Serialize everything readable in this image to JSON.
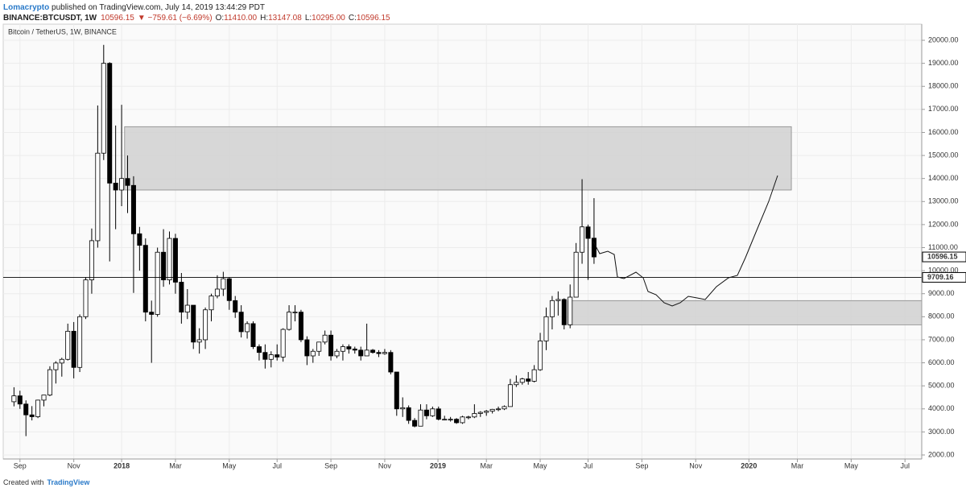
{
  "header": {
    "author": "Lomacrypto",
    "published": " published on TradingView.com, July 14, 2019 13:44:29 PDT",
    "symbol": "BINANCE:BTCUSDT, 1W",
    "price": "10596.15",
    "change": "▼ −759.61 (−6.69%)",
    "ohlc": [
      {
        "label": "O:",
        "value": "11410.00"
      },
      {
        "label": "H:",
        "value": "13147.08"
      },
      {
        "label": "L:",
        "value": "10295.00"
      },
      {
        "label": "C:",
        "value": "10596.15"
      }
    ]
  },
  "footer": {
    "text": "Created with",
    "brand": "TradingView"
  },
  "chart_data": {
    "type": "candlestick",
    "title": "Bitcoin / TetherUS, 1W, BINANCE",
    "categories": [
      null,
      null,
      null,
      null,
      null,
      null,
      null,
      null,
      null,
      null,
      null,
      null,
      null,
      null,
      null,
      null,
      null,
      null,
      null,
      null,
      null,
      null,
      null,
      null,
      null,
      null,
      null,
      null,
      null,
      null,
      null,
      null,
      null,
      null,
      null,
      null,
      null,
      null,
      null,
      null,
      null,
      null,
      null,
      null,
      null,
      null,
      null,
      null,
      null,
      null,
      null,
      null,
      null,
      null,
      null,
      null,
      null,
      null,
      null,
      null,
      null,
      null,
      null,
      null,
      null,
      null,
      null,
      null,
      null,
      null,
      null,
      null,
      null,
      null,
      null,
      null,
      null,
      null,
      null,
      null,
      null,
      null,
      null,
      null,
      null,
      null,
      null,
      null,
      null,
      null,
      null,
      null,
      null,
      null,
      null,
      null,
      null,
      null
    ],
    "open": [
      4310,
      4565,
      4210,
      3740,
      3660,
      4380,
      4600,
      5700,
      5990,
      6150,
      7370,
      5800,
      8000,
      9600,
      11300,
      15100,
      19000,
      13800,
      13500,
      14000,
      13700,
      11600,
      11100,
      8200,
      8100,
      10800,
      9600,
      11400,
      9500,
      8200,
      8500,
      6900,
      7000,
      8300,
      8900,
      9200,
      9650,
      8700,
      8200,
      7350,
      7700,
      6700,
      6450,
      6150,
      6350,
      6250,
      7450,
      8200,
      8200,
      7000,
      6300,
      6500,
      6900,
      7200,
      6300,
      6500,
      6700,
      6600,
      6550,
      6300,
      6550,
      6450,
      6400,
      6450,
      5600,
      4000,
      4050,
      3500,
      3250,
      3950,
      3700,
      4000,
      3550,
      3550,
      3550,
      3400,
      3650,
      3650,
      3800,
      3850,
      3900,
      3980,
      4000,
      4100,
      5050,
      5150,
      5300,
      5200,
      5700,
      6950,
      8000,
      8700,
      8750,
      7650,
      8850,
      10800,
      11900,
      11410
    ],
    "high": [
      4939,
      4788,
      4370,
      4120,
      4400,
      4470,
      5850,
      6070,
      6220,
      7700,
      7770,
      8100,
      9700,
      11830,
      17170,
      19800,
      19050,
      16300,
      17200,
      15000,
      14100,
      11900,
      11400,
      8700,
      11000,
      11800,
      11700,
      11600,
      9900,
      9200,
      8500,
      7500,
      8400,
      9000,
      9800,
      9950,
      9700,
      8900,
      8500,
      7800,
      7800,
      6800,
      6800,
      6500,
      6800,
      7500,
      8500,
      8500,
      8300,
      7150,
      6600,
      6900,
      7400,
      7400,
      6600,
      6800,
      6800,
      6700,
      6700,
      7700,
      6600,
      6550,
      6600,
      6550,
      5600,
      4500,
      4150,
      3600,
      4200,
      4200,
      4100,
      4100,
      3700,
      3650,
      3600,
      3700,
      3700,
      4200,
      3900,
      3950,
      4000,
      4100,
      4150,
      5300,
      5450,
      5350,
      5600,
      5900,
      7300,
      8400,
      8900,
      9100,
      8800,
      9400,
      11200,
      13970,
      12000,
      13147.08
    ],
    "low": [
      4110,
      4000,
      2817,
      3500,
      3600,
      4110,
      4550,
      5100,
      5400,
      6100,
      5325,
      5600,
      7900,
      9000,
      11000,
      14800,
      10400,
      11800,
      12800,
      12500,
      9035,
      10000,
      7800,
      6000,
      8000,
      9300,
      9400,
      9000,
      7700,
      7900,
      6600,
      6400,
      6600,
      7800,
      8800,
      8900,
      8300,
      7950,
      7100,
      7050,
      6600,
      6100,
      5750,
      5800,
      6100,
      6050,
      7400,
      7800,
      6900,
      5900,
      6000,
      6300,
      6800,
      6100,
      6200,
      6100,
      6400,
      6400,
      6100,
      6300,
      6400,
      6250,
      6350,
      5500,
      3700,
      3650,
      3350,
      3200,
      3250,
      3550,
      3650,
      3500,
      3500,
      3450,
      3350,
      3350,
      3550,
      3600,
      3650,
      3700,
      3800,
      3900,
      3950,
      4100,
      4950,
      5050,
      5050,
      5150,
      5650,
      6550,
      7450,
      8050,
      7450,
      7500,
      8850,
      10300,
      9600,
      10295
    ],
    "close": [
      4565,
      4210,
      3740,
      3660,
      4380,
      4600,
      5700,
      5990,
      6150,
      7370,
      5800,
      8000,
      9600,
      11300,
      15100,
      19000,
      13800,
      13500,
      14000,
      13700,
      11600,
      11100,
      8200,
      8100,
      10800,
      9600,
      11400,
      9500,
      8200,
      8500,
      6900,
      7000,
      8300,
      8900,
      9200,
      9650,
      8700,
      8200,
      7350,
      7700,
      6700,
      6450,
      6150,
      6350,
      6250,
      7450,
      8200,
      8200,
      7000,
      6300,
      6500,
      6900,
      7200,
      6300,
      6500,
      6700,
      6600,
      6550,
      6300,
      6550,
      6450,
      6400,
      6450,
      5600,
      4000,
      4050,
      3500,
      3250,
      3950,
      3700,
      4000,
      3550,
      3550,
      3550,
      3400,
      3650,
      3650,
      3800,
      3850,
      3900,
      3980,
      4000,
      4100,
      5050,
      5150,
      5300,
      5200,
      5700,
      6950,
      8000,
      8700,
      8750,
      7650,
      8850,
      10800,
      11900,
      11400,
      10596.15
    ],
    "up_color": "#ffffff",
    "down_color": "#000000",
    "border_color": "#000000",
    "xlim": [
      -1.8,
      151.8
    ],
    "xticks": [
      {
        "value": 1,
        "label": "Sep"
      },
      {
        "value": 10,
        "label": "Nov"
      },
      {
        "value": 18,
        "label": "2018"
      },
      {
        "value": 27,
        "label": "Mar"
      },
      {
        "value": 36,
        "label": "May"
      },
      {
        "value": 44,
        "label": "Jul"
      },
      {
        "value": 53,
        "label": "Sep"
      },
      {
        "value": 62,
        "label": "Nov"
      },
      {
        "value": 70.9,
        "label": "2019"
      },
      {
        "value": 79,
        "label": "Mar"
      },
      {
        "value": 88,
        "label": "May"
      },
      {
        "value": 96,
        "label": "Jul"
      },
      {
        "value": 105,
        "label": "Sep"
      },
      {
        "value": 114,
        "label": "Nov"
      },
      {
        "value": 122.9,
        "label": "2020"
      },
      {
        "value": 131,
        "label": "Mar"
      },
      {
        "value": 140,
        "label": "May"
      },
      {
        "value": 149,
        "label": "Jul"
      }
    ],
    "ylim": [
      1825,
      20700
    ],
    "yticks": [
      {
        "value": 2000,
        "label": "2000.00"
      },
      {
        "value": 3000,
        "label": "3000.00"
      },
      {
        "value": 4000,
        "label": "4000.00"
      },
      {
        "value": 5000,
        "label": "5000.00"
      },
      {
        "value": 6000,
        "label": "6000.00"
      },
      {
        "value": 7000,
        "label": "7000.00"
      },
      {
        "value": 8000,
        "label": "8000.00"
      },
      {
        "value": 9000,
        "label": "9000.00"
      },
      {
        "value": 10000,
        "label": "10000.00"
      },
      {
        "value": 11000,
        "label": "11000.00"
      },
      {
        "value": 12000,
        "label": "12000.00"
      },
      {
        "value": 13000,
        "label": "13000.00"
      },
      {
        "value": 14000,
        "label": "14000.00"
      },
      {
        "value": 15000,
        "label": "15000.00"
      },
      {
        "value": 16000,
        "label": "16000.00"
      },
      {
        "value": 17000,
        "label": "17000.00"
      },
      {
        "value": 18000,
        "label": "18000.00"
      },
      {
        "value": 19000,
        "label": "19000.00"
      },
      {
        "value": 20000,
        "label": "20000.00"
      }
    ],
    "grid": true,
    "zones": [
      {
        "x": [
          18.5,
          130
        ],
        "y": [
          13500,
          16250
        ],
        "color": "#d3d3d3"
      },
      {
        "x": [
          92.6,
          151.8
        ],
        "y": [
          7650,
          8700
        ],
        "color": "#d3d3d3"
      }
    ],
    "hline": {
      "value": 9709.16,
      "label": "9709.16"
    },
    "last_price": {
      "value": 10596.15,
      "label": "10596.15"
    }
  }
}
